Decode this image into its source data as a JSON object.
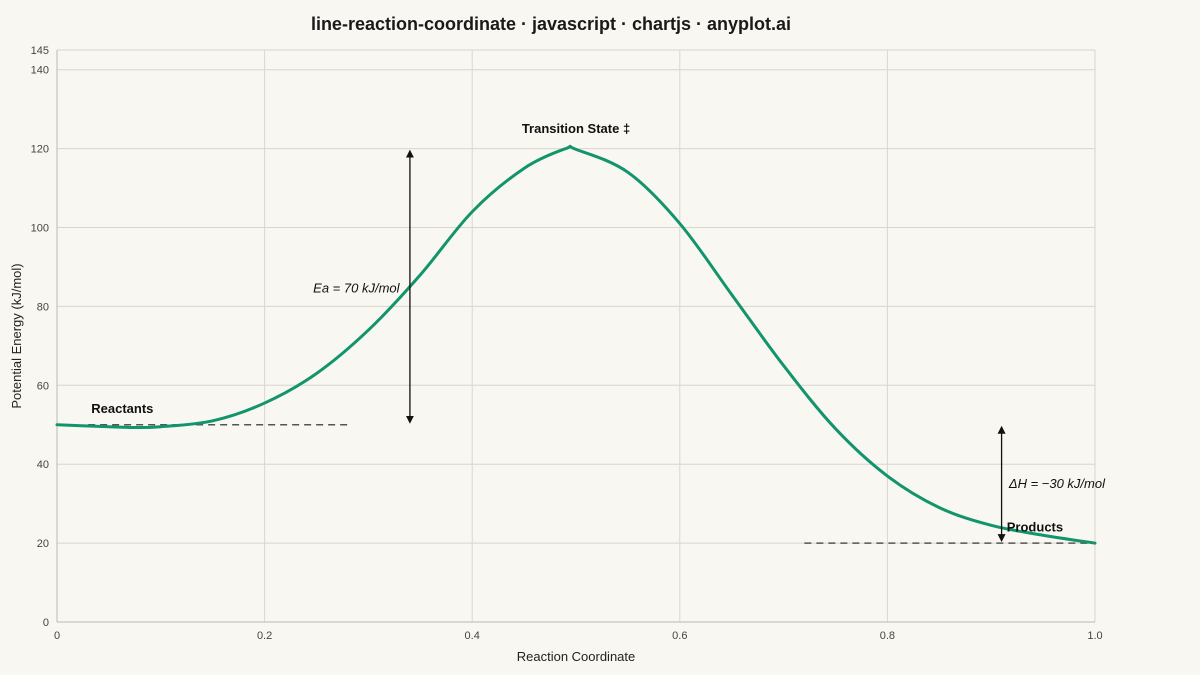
{
  "chart_data": {
    "type": "line",
    "title": "line-reaction-coordinate · javascript · chartjs · anyplot.ai",
    "xlabel": "Reaction Coordinate",
    "ylabel": "Potential Energy (kJ/mol)",
    "xlim": [
      0,
      1.0
    ],
    "ylim": [
      0,
      145
    ],
    "x_ticks": [
      "0",
      "0.2",
      "0.4",
      "0.6",
      "0.8",
      "1.0"
    ],
    "y_ticks": [
      "0",
      "20",
      "40",
      "60",
      "80",
      "100",
      "120",
      "140",
      "145"
    ],
    "grid": true,
    "colors": {
      "curve": "#12946c",
      "reference": "#555555",
      "arrow": "#111111",
      "background": "#f9f7f1"
    },
    "series": [
      {
        "x": [
          0,
          0.05,
          0.075,
          0.1,
          0.15,
          0.2,
          0.25,
          0.3,
          0.35,
          0.4,
          0.45,
          0.49,
          0.5,
          0.55,
          0.6,
          0.65,
          0.7,
          0.75,
          0.8,
          0.85,
          0.9,
          0.95,
          1.0
        ],
        "values": [
          50,
          49.5,
          49.3,
          49.5,
          51,
          55.5,
          63,
          74,
          88,
          104,
          115,
          120,
          119.8,
          114,
          101,
          83,
          65,
          49,
          37,
          29,
          24.5,
          22,
          20
        ]
      }
    ],
    "reference_lines": [
      {
        "y": 50,
        "x_start": 0.03,
        "x_end": 0.28
      },
      {
        "y": 20,
        "x_start": 0.72,
        "x_end": 1.0
      }
    ],
    "arrows": [
      {
        "x": 0.34,
        "y_start": 50,
        "y_end": 120
      },
      {
        "x": 0.91,
        "y_start": 20,
        "y_end": 50
      }
    ],
    "annotations": [
      {
        "text": "Transition State ‡",
        "x": 0.5,
        "y": 124,
        "anchor": "middle",
        "style": "bold"
      },
      {
        "text": "Reactants",
        "x": 0.033,
        "y": 53,
        "anchor": "start",
        "style": "bold"
      },
      {
        "text": "Products",
        "x": 0.915,
        "y": 23,
        "anchor": "start",
        "style": "bold"
      },
      {
        "text": "Ea = 70 kJ/mol",
        "x": 0.33,
        "y": 83.5,
        "anchor": "end",
        "style": "italic"
      },
      {
        "text": "ΔH = −30 kJ/mol",
        "x": 0.917,
        "y": 34,
        "anchor": "start",
        "style": "italic"
      }
    ]
  }
}
